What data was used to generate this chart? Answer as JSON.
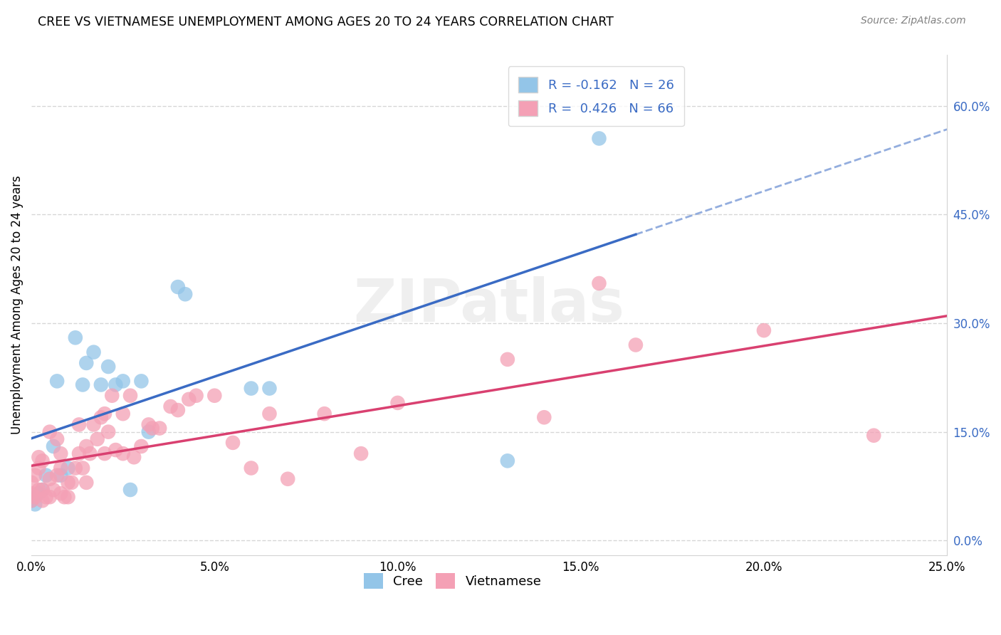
{
  "title": "CREE VS VIETNAMESE UNEMPLOYMENT AMONG AGES 20 TO 24 YEARS CORRELATION CHART",
  "source": "Source: ZipAtlas.com",
  "ylabel": "Unemployment Among Ages 20 to 24 years",
  "xlim": [
    0.0,
    0.25
  ],
  "ylim": [
    -0.02,
    0.67
  ],
  "cree_R": -0.162,
  "cree_N": 26,
  "viet_R": 0.426,
  "viet_N": 66,
  "cree_color": "#93C5E8",
  "viet_color": "#F4A0B5",
  "cree_line_color": "#3A6BC4",
  "viet_line_color": "#D94070",
  "legend_text_color": "#3A6BC4",
  "background_color": "#FFFFFF",
  "grid_color": "#CCCCCC",
  "xtick_vals": [
    0.0,
    0.05,
    0.1,
    0.15,
    0.2,
    0.25
  ],
  "xtick_labels": [
    "0.0%",
    "5.0%",
    "10.0%",
    "15.0%",
    "20.0%",
    "25.0%"
  ],
  "ytick_vals": [
    0.0,
    0.15,
    0.3,
    0.45,
    0.6
  ],
  "ytick_labels": [
    "0.0%",
    "15.0%",
    "30.0%",
    "45.0%",
    "60.0%"
  ],
  "cree_x": [
    0.0,
    0.001,
    0.002,
    0.003,
    0.004,
    0.006,
    0.007,
    0.008,
    0.01,
    0.012,
    0.014,
    0.015,
    0.017,
    0.019,
    0.021,
    0.023,
    0.025,
    0.027,
    0.03,
    0.032,
    0.04,
    0.042,
    0.06,
    0.065,
    0.13,
    0.155
  ],
  "cree_y": [
    0.055,
    0.05,
    0.065,
    0.07,
    0.09,
    0.13,
    0.22,
    0.09,
    0.1,
    0.28,
    0.215,
    0.245,
    0.26,
    0.215,
    0.24,
    0.215,
    0.22,
    0.07,
    0.22,
    0.15,
    0.35,
    0.34,
    0.21,
    0.21,
    0.11,
    0.555
  ],
  "viet_x": [
    0.0,
    0.0,
    0.0,
    0.001,
    0.001,
    0.002,
    0.002,
    0.002,
    0.003,
    0.003,
    0.003,
    0.004,
    0.005,
    0.005,
    0.005,
    0.006,
    0.007,
    0.007,
    0.008,
    0.008,
    0.008,
    0.009,
    0.01,
    0.01,
    0.011,
    0.012,
    0.013,
    0.013,
    0.014,
    0.015,
    0.015,
    0.016,
    0.017,
    0.018,
    0.019,
    0.02,
    0.02,
    0.021,
    0.022,
    0.023,
    0.025,
    0.025,
    0.027,
    0.028,
    0.03,
    0.032,
    0.033,
    0.035,
    0.038,
    0.04,
    0.043,
    0.045,
    0.05,
    0.055,
    0.06,
    0.065,
    0.07,
    0.08,
    0.09,
    0.1,
    0.13,
    0.14,
    0.155,
    0.165,
    0.2,
    0.23
  ],
  "viet_y": [
    0.055,
    0.065,
    0.08,
    0.06,
    0.09,
    0.07,
    0.1,
    0.115,
    0.055,
    0.07,
    0.11,
    0.06,
    0.06,
    0.085,
    0.15,
    0.07,
    0.09,
    0.14,
    0.065,
    0.1,
    0.12,
    0.06,
    0.06,
    0.08,
    0.08,
    0.1,
    0.12,
    0.16,
    0.1,
    0.08,
    0.13,
    0.12,
    0.16,
    0.14,
    0.17,
    0.12,
    0.175,
    0.15,
    0.2,
    0.125,
    0.12,
    0.175,
    0.2,
    0.115,
    0.13,
    0.16,
    0.155,
    0.155,
    0.185,
    0.18,
    0.195,
    0.2,
    0.2,
    0.135,
    0.1,
    0.175,
    0.085,
    0.175,
    0.12,
    0.19,
    0.25,
    0.17,
    0.355,
    0.27,
    0.29,
    0.145
  ]
}
